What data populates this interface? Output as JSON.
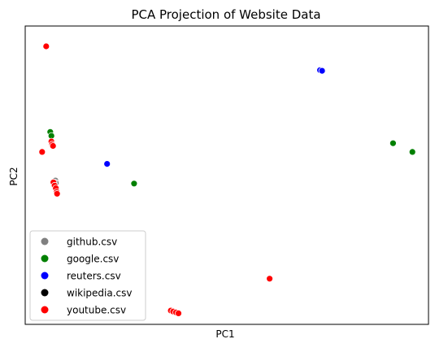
{
  "chart_data": {
    "type": "scatter",
    "title": "PCA Projection of Website Data",
    "xlabel": "PC1",
    "ylabel": "PC2",
    "xlim": [
      0,
      100
    ],
    "ylim": [
      0,
      100
    ],
    "x_ticks_shown": false,
    "y_ticks_shown": false,
    "grid": false,
    "legend": {
      "placement": "lower-left"
    },
    "series": [
      {
        "name": "github.csv",
        "color": "#808080",
        "points": [
          [
            7.5,
            48.2
          ],
          [
            7.6,
            47.4
          ]
        ]
      },
      {
        "name": "google.csv",
        "color": "#008000",
        "points": [
          [
            6.2,
            64.5
          ],
          [
            6.5,
            63.2
          ],
          [
            27.0,
            47.2
          ],
          [
            91.2,
            60.7
          ],
          [
            96.0,
            57.8
          ]
        ]
      },
      {
        "name": "reuters.csv",
        "color": "#0000ff",
        "points": [
          [
            73.1,
            85.2
          ],
          [
            73.6,
            85.0
          ],
          [
            20.3,
            53.8
          ]
        ]
      },
      {
        "name": "wikipedia.csv",
        "color": "#000000",
        "points": [
          [
            7.2,
            47.6
          ]
        ]
      },
      {
        "name": "youtube.csv",
        "color": "#ff0000",
        "points": [
          [
            5.2,
            93.2
          ],
          [
            4.2,
            57.8
          ],
          [
            6.5,
            61.3
          ],
          [
            6.7,
            60.3
          ],
          [
            6.9,
            59.8
          ],
          [
            7.0,
            47.6
          ],
          [
            7.3,
            46.5
          ],
          [
            7.6,
            45.6
          ],
          [
            7.8,
            44.4
          ],
          [
            7.9,
            43.8
          ],
          [
            60.6,
            15.3
          ],
          [
            36.1,
            4.6
          ],
          [
            36.7,
            4.3
          ],
          [
            37.4,
            4.0
          ],
          [
            38.0,
            3.7
          ]
        ]
      }
    ]
  }
}
